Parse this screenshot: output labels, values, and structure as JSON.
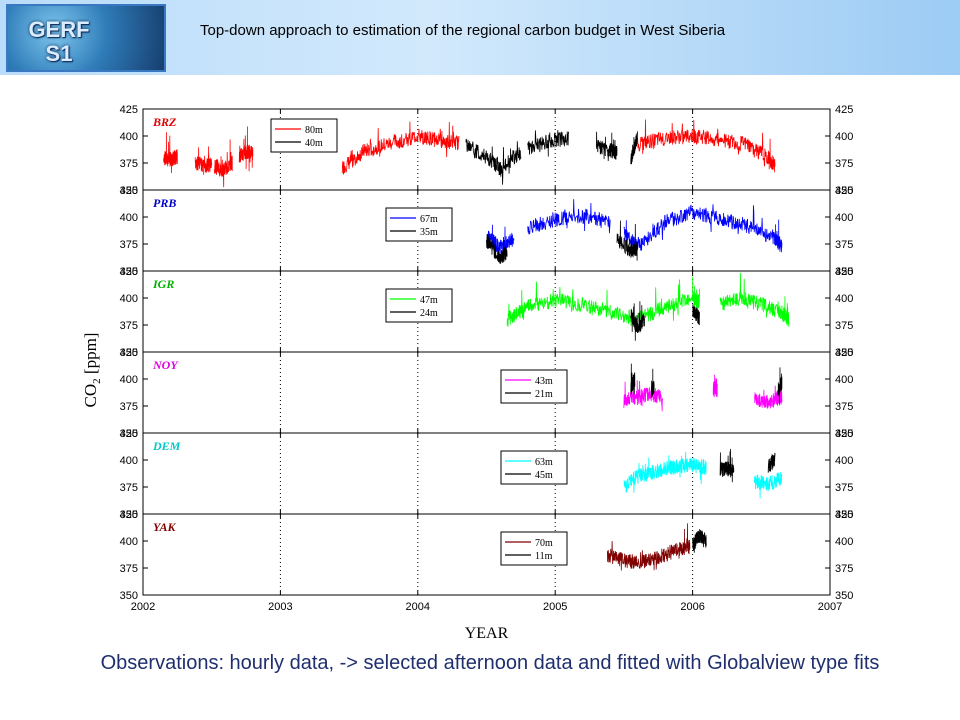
{
  "header": {
    "logo_text": "GERF\nS1",
    "title": "Top-down approach to estimation of the regional carbon budget in West Siberia"
  },
  "caption": "Observations: hourly data, -> selected afternoon data and fitted with Globalview type fits",
  "chart_data": {
    "type": "line",
    "xlabel": "YEAR",
    "ylabel": "CO2 [ppm]",
    "xlim": [
      2002,
      2007
    ],
    "x_ticks": [
      2002,
      2003,
      2004,
      2005,
      2006,
      2007
    ],
    "ylim": [
      350,
      425
    ],
    "y_ticks": [
      350,
      375,
      400,
      425
    ],
    "grid": "dotted vertical lines at each year",
    "panels": [
      {
        "station": "BRZ",
        "color": "#e00000",
        "series": [
          {
            "name": "80m",
            "color": "#ff0000",
            "segments": [
              {
                "x": [
                  2002.15,
                  2002.2,
                  2002.25
                ],
                "y": [
                  380,
                  378,
                  381
                ]
              },
              {
                "x": [
                  2002.38,
                  2002.45,
                  2002.5
                ],
                "y": [
                  375,
                  372,
                  374
                ]
              },
              {
                "x": [
                  2002.52,
                  2002.58,
                  2002.65
                ],
                "y": [
                  372,
                  368,
                  375
                ]
              },
              {
                "x": [
                  2002.7,
                  2002.75,
                  2002.8
                ],
                "y": [
                  380,
                  386,
                  384
                ]
              },
              {
                "x": [
                  2003.45,
                  2003.6,
                  2003.8,
                  2004.0,
                  2004.15,
                  2004.3
                ],
                "y": [
                  370,
                  385,
                  393,
                  400,
                  396,
                  393
                ]
              },
              {
                "x": [
                  2005.6,
                  2005.8,
                  2006.0,
                  2006.2,
                  2006.4,
                  2006.55,
                  2006.6
                ],
                "y": [
                  392,
                  398,
                  400,
                  397,
                  392,
                  380,
                  372
                ]
              }
            ]
          },
          {
            "name": "40m",
            "color": "#000000",
            "segments": [
              {
                "x": [
                  2004.35,
                  2004.5,
                  2004.6,
                  2004.75
                ],
                "y": [
                  392,
                  380,
                  370,
                  385
                ]
              },
              {
                "x": [
                  2004.8,
                  2004.95,
                  2005.1
                ],
                "y": [
                  388,
                  395,
                  398
                ]
              },
              {
                "x": [
                  2005.3,
                  2005.4,
                  2005.45
                ],
                "y": [
                  390,
                  387,
                  384
                ]
              },
              {
                "x": [
                  2005.55,
                  2005.6
                ],
                "y": [
                  378,
                  400
                ]
              }
            ]
          }
        ]
      },
      {
        "station": "PRB",
        "color": "#0000cc",
        "series": [
          {
            "name": "67m",
            "color": "#0000ff",
            "segments": [
              {
                "x": [
                  2004.5,
                  2004.6,
                  2004.7
                ],
                "y": [
                  382,
                  372,
                  380
                ]
              },
              {
                "x": [
                  2004.8,
                  2005.0,
                  2005.2,
                  2005.4
                ],
                "y": [
                  390,
                  398,
                  401,
                  395
                ]
              },
              {
                "x": [
                  2005.5,
                  2005.6,
                  2005.8,
                  2006.0,
                  2006.2,
                  2006.4,
                  2006.6,
                  2006.65
                ],
                "y": [
                  385,
                  372,
                  395,
                  405,
                  398,
                  392,
                  380,
                  372
                ]
              }
            ]
          },
          {
            "name": "35m",
            "color": "#000000",
            "segments": [
              {
                "x": [
                  2004.5,
                  2004.6,
                  2004.65
                ],
                "y": [
                  378,
                  362,
                  368
                ]
              },
              {
                "x": [
                  2005.45,
                  2005.55,
                  2005.6
                ],
                "y": [
                  380,
                  368,
                  372
                ]
              }
            ]
          }
        ]
      },
      {
        "station": "IGR",
        "color": "#00b000",
        "series": [
          {
            "name": "47m",
            "color": "#00ff00",
            "segments": [
              {
                "x": [
                  2004.65,
                  2004.8,
                  2005.0,
                  2005.2,
                  2005.4,
                  2005.6,
                  2005.8,
                  2006.0,
                  2006.05
                ],
                "y": [
                  380,
                  392,
                  398,
                  394,
                  388,
                  380,
                  392,
                  400,
                  396
                ]
              },
              {
                "x": [
                  2006.2,
                  2006.35,
                  2006.5,
                  2006.65,
                  2006.7
                ],
                "y": [
                  395,
                  400,
                  394,
                  386,
                  380
                ]
              }
            ]
          },
          {
            "name": "24m",
            "color": "#000000",
            "segments": [
              {
                "x": [
                  2005.55,
                  2005.6,
                  2005.65
                ],
                "y": [
                  385,
                  372,
                  380
                ]
              },
              {
                "x": [
                  2006.0,
                  2006.05
                ],
                "y": [
                  388,
                  382
                ]
              }
            ]
          }
        ]
      },
      {
        "station": "NOY",
        "color": "#e000e0",
        "series": [
          {
            "name": "43m",
            "color": "#ff00ff",
            "segments": [
              {
                "x": [
                  2005.5,
                  2005.6,
                  2005.7,
                  2005.78
                ],
                "y": [
                  380,
                  384,
                  386,
                  382
                ]
              },
              {
                "x": [
                  2006.15,
                  2006.18
                ],
                "y": [
                  392,
                  390
                ]
              },
              {
                "x": [
                  2006.45,
                  2006.55,
                  2006.65
                ],
                "y": [
                  381,
                  379,
                  383
                ]
              }
            ]
          },
          {
            "name": "21m",
            "color": "#000000",
            "segments": [
              {
                "x": [
                  2005.55,
                  2005.58
                ],
                "y": [
                  392,
                  400
                ]
              },
              {
                "x": [
                  2005.7,
                  2005.72
                ],
                "y": [
                  388,
                  394
                ]
              },
              {
                "x": [
                  2006.62,
                  2006.65
                ],
                "y": [
                  390,
                  396
                ]
              }
            ]
          }
        ]
      },
      {
        "station": "DEM",
        "color": "#00c8c8",
        "series": [
          {
            "name": "63m",
            "color": "#00ffff",
            "segments": [
              {
                "x": [
                  2005.5,
                  2005.6,
                  2005.7,
                  2005.8,
                  2005.9,
                  2006.0,
                  2006.1
                ],
                "y": [
                  375,
                  385,
                  388,
                  392,
                  394,
                  396,
                  393
                ]
              },
              {
                "x": [
                  2006.45,
                  2006.55,
                  2006.65
                ],
                "y": [
                  380,
                  378,
                  383
                ]
              }
            ]
          },
          {
            "name": "45m",
            "color": "#000000",
            "segments": [
              {
                "x": [
                  2006.2,
                  2006.25,
                  2006.3
                ],
                "y": [
                  391,
                  392,
                  390
                ]
              },
              {
                "x": [
                  2006.55,
                  2006.6
                ],
                "y": [
                  394,
                  400
                ]
              }
            ]
          }
        ]
      },
      {
        "station": "YAK",
        "color": "#800000",
        "series": [
          {
            "name": "70m",
            "color": "#800000",
            "segments": [
              {
                "x": [
                  2005.38,
                  2005.5,
                  2005.6,
                  2005.75,
                  2005.9,
                  2005.98
                ],
                "y": [
                  387,
                  382,
                  380,
                  385,
                  392,
                  395
                ]
              }
            ]
          },
          {
            "name": "11m",
            "color": "#000000",
            "segments": [
              {
                "x": [
                  2006.0,
                  2006.05,
                  2006.1
                ],
                "y": [
                  396,
                  405,
                  400
                ]
              }
            ]
          }
        ]
      }
    ]
  }
}
